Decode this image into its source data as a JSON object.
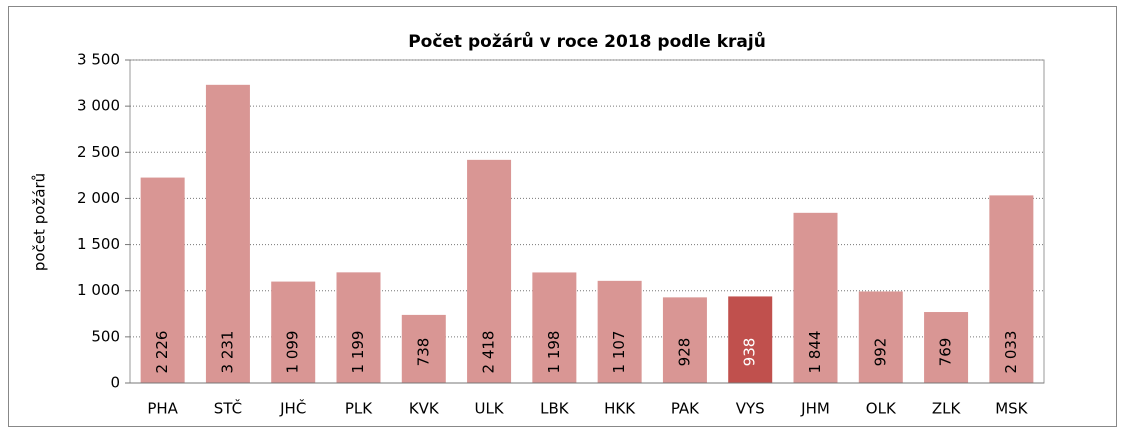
{
  "chart_data": {
    "type": "bar",
    "title": "Počet požárů v roce 2018 podle krajů",
    "y_label": "počet požárů",
    "categories": [
      "PHA",
      "STČ",
      "JHČ",
      "PLK",
      "KVK",
      "ULK",
      "LBK",
      "HKK",
      "PAK",
      "VYS",
      "JHM",
      "OLK",
      "ZLK",
      "MSK"
    ],
    "values": [
      2226,
      3231,
      1099,
      1199,
      738,
      2418,
      1198,
      1107,
      928,
      938,
      1844,
      992,
      769,
      2033
    ],
    "value_labels": [
      "2 226",
      "3 231",
      "1 099",
      "1 199",
      "738",
      "2 418",
      "1 198",
      "1 107",
      "928",
      "938",
      "1 844",
      "992",
      "769",
      "2 033"
    ],
    "colors": [
      "#d99694",
      "#d99694",
      "#d99694",
      "#d99694",
      "#d99694",
      "#d99694",
      "#d99694",
      "#d99694",
      "#d99694",
      "#c0504d",
      "#d99694",
      "#d99694",
      "#d99694",
      "#d99694"
    ],
    "label_colors": [
      "#000000",
      "#000000",
      "#000000",
      "#000000",
      "#000000",
      "#000000",
      "#000000",
      "#000000",
      "#000000",
      "#ffffff",
      "#000000",
      "#000000",
      "#000000",
      "#000000"
    ],
    "ylim": [
      0,
      3500
    ],
    "yticks": [
      0,
      500,
      {
        "value": 1000,
        "label": "1 000"
      },
      {
        "value": 1500,
        "label": "1 500"
      },
      {
        "value": 2000,
        "label": "2 000"
      },
      {
        "value": 2500,
        "label": "2 500"
      },
      {
        "value": 3000,
        "label": "3 000"
      },
      {
        "value": 3500,
        "label": "3 500"
      }
    ],
    "grid": true
  }
}
